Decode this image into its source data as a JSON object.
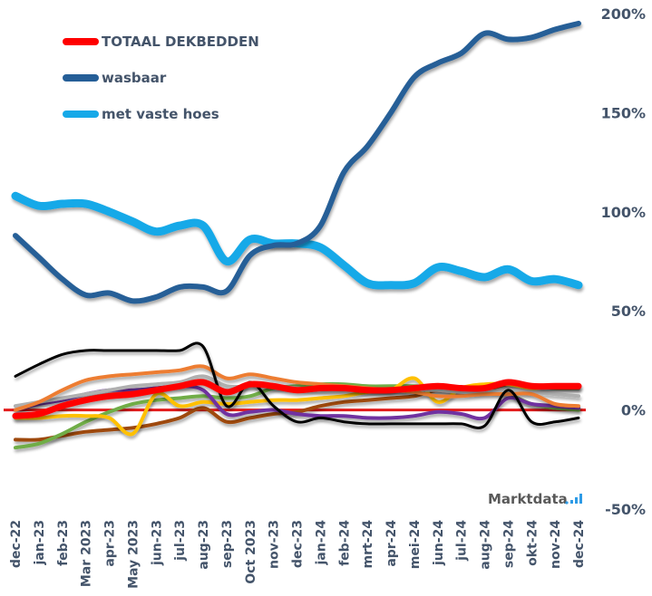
{
  "chart_data": {
    "type": "line",
    "title": "",
    "xlabel": "",
    "ylabel": "",
    "ylim": [
      -50,
      200
    ],
    "y_ticks": [
      "200%",
      "150%",
      "100%",
      "50%",
      "0%",
      "-50%"
    ],
    "y_tick_values": [
      200,
      150,
      100,
      50,
      0,
      -50
    ],
    "y_axis_side": "right",
    "grid": false,
    "legend_position": "top-left",
    "brand": "Marktdata",
    "categories": [
      "dec-22",
      "jan-23",
      "feb-23",
      "Mar 2023",
      "apr-23",
      "May 2023",
      "jun-23",
      "jul-23",
      "aug-23",
      "sep-23",
      "Oct 2023",
      "nov-23",
      "dec-23",
      "jan-24",
      "feb-24",
      "mrt-24",
      "apr-24",
      "mei-24",
      "jun-24",
      "jul-24",
      "aug-24",
      "sep-24",
      "okt-24",
      "nov-24",
      "dec-24"
    ],
    "baseline": {
      "value": 0,
      "color": "#e31b1b"
    },
    "series": [
      {
        "name": "TOTAAL DEKBEDDEN",
        "legend": true,
        "color": "#ff0000",
        "width": 7,
        "values": [
          -3,
          -2,
          2,
          5,
          7,
          8,
          10,
          12,
          14,
          9,
          13,
          12,
          10,
          11,
          11,
          10,
          10,
          11,
          12,
          11,
          11,
          14,
          12,
          12,
          12
        ]
      },
      {
        "name": "wasbaar",
        "legend": true,
        "color": "#255e97",
        "width": 6,
        "values": [
          88,
          77,
          66,
          58,
          59,
          55,
          57,
          62,
          62,
          60,
          78,
          83,
          84,
          93,
          120,
          133,
          150,
          168,
          175,
          180,
          190,
          187,
          188,
          192,
          195
        ]
      },
      {
        "name": "met vaste hoes",
        "legend": true,
        "color": "#16a9e8",
        "width": 9,
        "values": [
          108,
          103,
          104,
          104,
          100,
          95,
          90,
          93,
          93,
          75,
          86,
          84,
          84,
          82,
          73,
          64,
          63,
          64,
          72,
          70,
          67,
          71,
          65,
          66,
          63
        ]
      },
      {
        "name": "series-black",
        "legend": false,
        "color": "#000000",
        "width": 3,
        "values": [
          17,
          23,
          28,
          30,
          30,
          30,
          30,
          30,
          32,
          2,
          14,
          2,
          -6,
          -4,
          -6,
          -7,
          -7,
          -7,
          -7,
          -7,
          -8,
          10,
          -6,
          -6,
          -4
        ]
      },
      {
        "name": "series-orange",
        "legend": false,
        "color": "#ed7d31",
        "width": 4,
        "values": [
          0,
          4,
          10,
          15,
          17,
          18,
          19,
          20,
          22,
          16,
          18,
          16,
          14,
          13,
          12,
          11,
          10,
          9,
          7,
          7,
          8,
          8,
          8,
          3,
          2
        ]
      },
      {
        "name": "series-gray",
        "legend": false,
        "color": "#b0b0b0",
        "width": 4,
        "values": [
          2,
          4,
          6,
          8,
          10,
          12,
          13,
          14,
          17,
          12,
          12,
          12,
          11,
          10,
          10,
          10,
          10,
          10,
          10,
          9,
          9,
          10,
          9,
          8,
          7
        ]
      },
      {
        "name": "series-purple",
        "legend": false,
        "color": "#7030a0",
        "width": 4,
        "values": [
          0,
          3,
          5,
          8,
          10,
          10,
          11,
          12,
          10,
          -2,
          -1,
          0,
          -2,
          -3,
          -3,
          -4,
          -4,
          -3,
          -1,
          -2,
          -4,
          6,
          3,
          2,
          1
        ]
      },
      {
        "name": "series-yellow",
        "legend": false,
        "color": "#ffc000",
        "width": 4,
        "values": [
          -4,
          -4,
          -3,
          -3,
          -4,
          -12,
          8,
          2,
          4,
          3,
          4,
          5,
          5,
          6,
          7,
          9,
          10,
          16,
          4,
          11,
          13,
          13,
          11,
          12,
          12
        ]
      },
      {
        "name": "series-green",
        "legend": false,
        "color": "#70ad47",
        "width": 4,
        "values": [
          -19,
          -17,
          -12,
          -6,
          -1,
          3,
          5,
          6,
          7,
          6,
          7,
          11,
          12,
          13,
          13,
          12,
          12,
          12,
          11,
          10,
          10,
          8,
          3,
          1,
          0
        ]
      },
      {
        "name": "series-brown",
        "legend": false,
        "color": "#9e480e",
        "width": 4,
        "values": [
          -15,
          -15,
          -13,
          -11,
          -10,
          -9,
          -7,
          -4,
          1,
          -6,
          -4,
          -2,
          -1,
          2,
          4,
          5,
          6,
          7,
          10,
          9,
          10,
          13,
          12,
          11,
          11
        ]
      }
    ]
  }
}
